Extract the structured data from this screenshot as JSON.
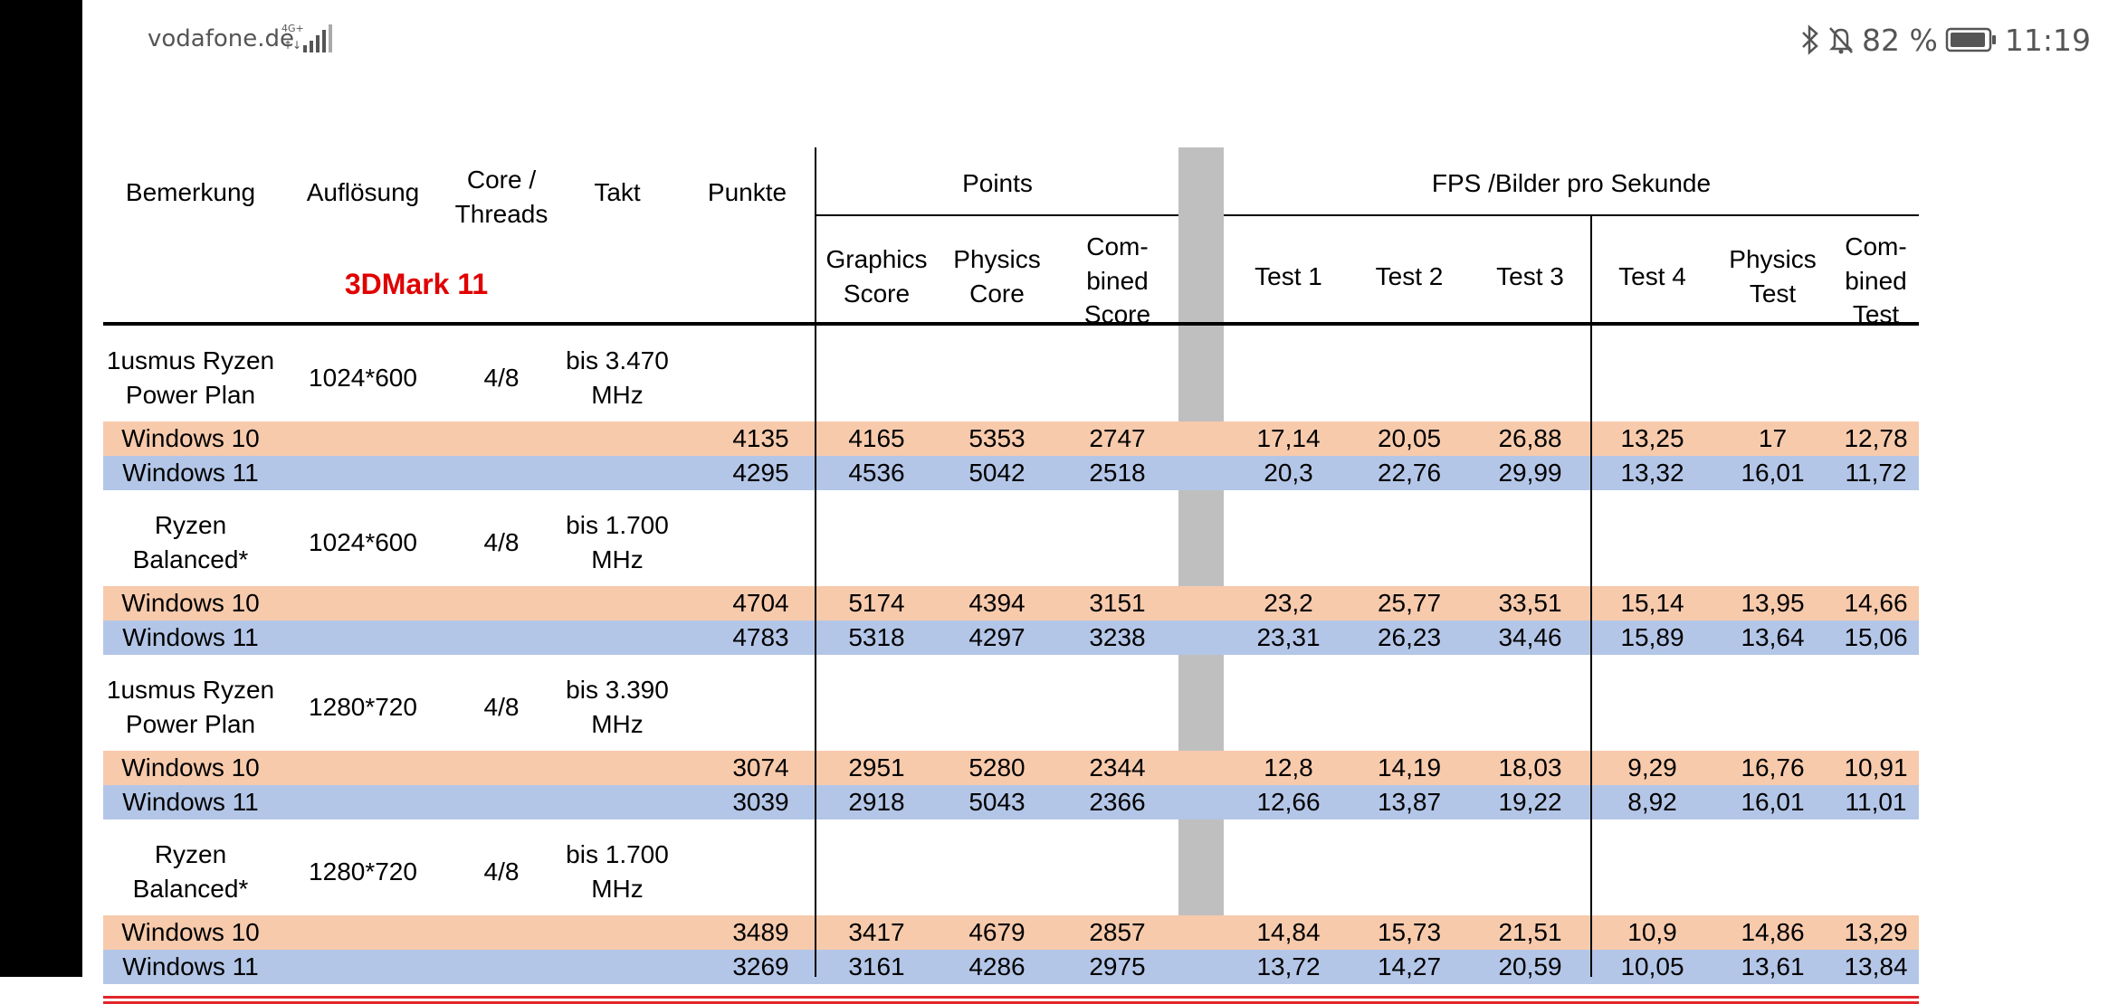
{
  "status_bar": {
    "carrier": "vodafone.de",
    "network": "4G+",
    "battery_percent": "82 %",
    "time": "11:19",
    "icons": [
      "bluetooth-icon",
      "mute-icon",
      "battery-icon",
      "signal-icon"
    ]
  },
  "table": {
    "title": "3DMark 11",
    "headers": {
      "bemerkung": "Bemerkung",
      "aufloesung": "Auflösung",
      "core_threads": "Core /\nThreads",
      "takt": "Takt",
      "punkte": "Punkte",
      "points_group": "Points",
      "fps_group": "FPS /Bilder pro Sekunde",
      "graphics_score": "Graphics\nScore",
      "physics_core": "Physics\nCore",
      "combined_score": "Com-\nbined\nScore",
      "test1": "Test 1",
      "test2": "Test 2",
      "test3": "Test 3",
      "test4": "Test 4",
      "physics_test": "Physics\nTest",
      "combined_test": "Com-\nbined\nTest"
    },
    "groups": [
      {
        "label": "1usmus Ryzen\nPower Plan",
        "resolution": "1024*600",
        "cores": "4/8",
        "takt": "bis 3.470\nMHz",
        "rows": [
          {
            "os": "Windows 10",
            "punkte": "4135",
            "graphics": "4165",
            "physics": "5353",
            "combined": "2747",
            "t1": "17,14",
            "t2": "20,05",
            "t3": "26,88",
            "t4": "13,25",
            "pt": "17",
            "ct": "12,78"
          },
          {
            "os": "Windows 11",
            "punkte": "4295",
            "graphics": "4536",
            "physics": "5042",
            "combined": "2518",
            "t1": "20,3",
            "t2": "22,76",
            "t3": "29,99",
            "t4": "13,32",
            "pt": "16,01",
            "ct": "11,72"
          }
        ]
      },
      {
        "label": "Ryzen\nBalanced*",
        "resolution": "1024*600",
        "cores": "4/8",
        "takt": "bis 1.700\nMHz",
        "rows": [
          {
            "os": "Windows 10",
            "punkte": "4704",
            "graphics": "5174",
            "physics": "4394",
            "combined": "3151",
            "t1": "23,2",
            "t2": "25,77",
            "t3": "33,51",
            "t4": "15,14",
            "pt": "13,95",
            "ct": "14,66"
          },
          {
            "os": "Windows 11",
            "punkte": "4783",
            "graphics": "5318",
            "physics": "4297",
            "combined": "3238",
            "t1": "23,31",
            "t2": "26,23",
            "t3": "34,46",
            "t4": "15,89",
            "pt": "13,64",
            "ct": "15,06"
          }
        ]
      },
      {
        "label": "1usmus Ryzen\nPower Plan",
        "resolution": "1280*720",
        "cores": "4/8",
        "takt": "bis 3.390\nMHz",
        "rows": [
          {
            "os": "Windows 10",
            "punkte": "3074",
            "graphics": "2951",
            "physics": "5280",
            "combined": "2344",
            "t1": "12,8",
            "t2": "14,19",
            "t3": "18,03",
            "t4": "9,29",
            "pt": "16,76",
            "ct": "10,91"
          },
          {
            "os": "Windows 11",
            "punkte": "3039",
            "graphics": "2918",
            "physics": "5043",
            "combined": "2366",
            "t1": "12,66",
            "t2": "13,87",
            "t3": "19,22",
            "t4": "8,92",
            "pt": "16,01",
            "ct": "11,01"
          }
        ]
      },
      {
        "label": "Ryzen\nBalanced*",
        "resolution": "1280*720",
        "cores": "4/8",
        "takt": "bis 1.700\nMHz",
        "rows": [
          {
            "os": "Windows 10",
            "punkte": "3489",
            "graphics": "3417",
            "physics": "4679",
            "combined": "2857",
            "t1": "14,84",
            "t2": "15,73",
            "t3": "21,51",
            "t4": "10,9",
            "pt": "14,86",
            "ct": "13,29"
          },
          {
            "os": "Windows 11",
            "punkte": "3269",
            "graphics": "3161",
            "physics": "4286",
            "combined": "2975",
            "t1": "13,72",
            "t2": "14,27",
            "t3": "20,59",
            "t4": "10,05",
            "pt": "13,61",
            "ct": "13,84"
          }
        ]
      }
    ]
  },
  "colors": {
    "windows10_row": "#f7caac",
    "windows11_row": "#b4c6e7",
    "title_red": "#e00000",
    "separator_gray": "#bfbfbf"
  }
}
